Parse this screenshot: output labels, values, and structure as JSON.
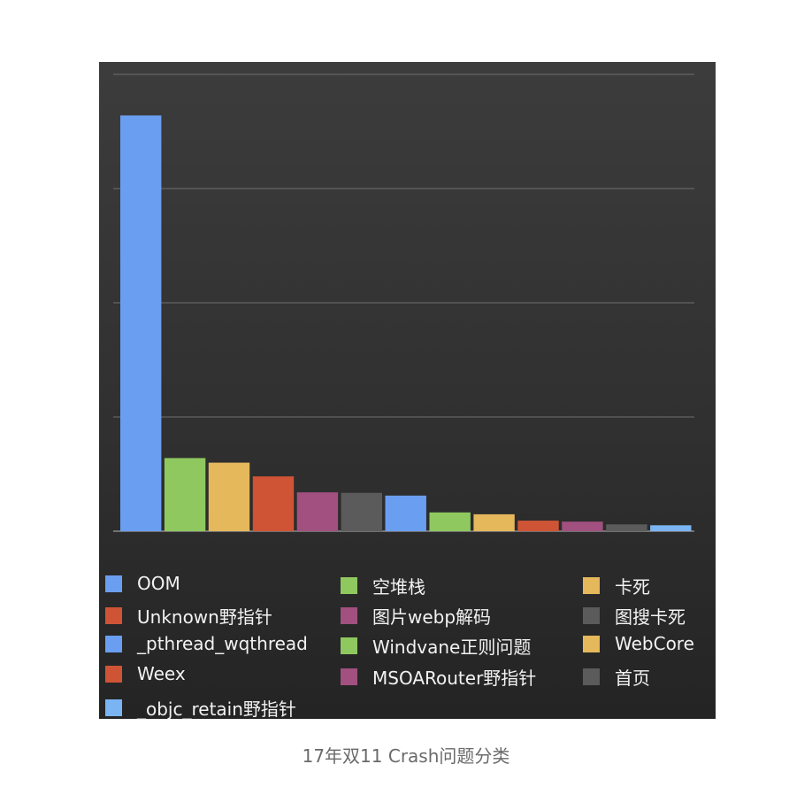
{
  "caption": "17年双11 Crash问题分类",
  "chart_data": {
    "type": "bar",
    "ylim": [
      0,
      100
    ],
    "grid": true,
    "legend_placement": "bottom",
    "categories": [
      "OOM",
      "空堆栈",
      "卡死",
      "Unknown野指针",
      "图片webp解码",
      "图搜卡死",
      "_pthread_wqthread",
      "Windvane正则问题",
      "WebCore",
      "Weex",
      "MSOARouter野指针",
      "首页",
      "_objc_retain野指针"
    ],
    "values": [
      91,
      16,
      15,
      12,
      8.5,
      8.4,
      7.8,
      4.1,
      3.7,
      2.3,
      2.1,
      1.5,
      1.3
    ],
    "colors": [
      "#6a9ef0",
      "#8fc85f",
      "#e5b85c",
      "#cf5436",
      "#a1507f",
      "#5b5b5b",
      "#6a9ef0",
      "#8fc85f",
      "#e5b85c",
      "#cf5436",
      "#a1507f",
      "#5b5b5b",
      "#7ab4f2"
    ]
  },
  "legend": {
    "col1": [
      {
        "label": "OOM",
        "color": "#6a9ef0"
      },
      {
        "label": "Unknown野指针",
        "color": "#cf5436"
      },
      {
        "label": "_pthread_wqthread",
        "color": "#6a9ef0"
      },
      {
        "label": "Weex",
        "color": "#cf5436"
      },
      {
        "label": "_objc_retain野指针",
        "color": "#7ab4f2"
      }
    ],
    "col2": [
      {
        "label": "空堆栈",
        "color": "#8fc85f"
      },
      {
        "label": "图片webp解码",
        "color": "#a1507f"
      },
      {
        "label": "Windvane正则问题",
        "color": "#8fc85f"
      },
      {
        "label": "MSOARouter野指针",
        "color": "#a1507f"
      }
    ],
    "col3": [
      {
        "label": "卡死",
        "color": "#e5b85c"
      },
      {
        "label": "图搜卡死",
        "color": "#5b5b5b"
      },
      {
        "label": "WebCore",
        "color": "#e5b85c"
      },
      {
        "label": "首页",
        "color": "#5b5b5b"
      }
    ]
  }
}
